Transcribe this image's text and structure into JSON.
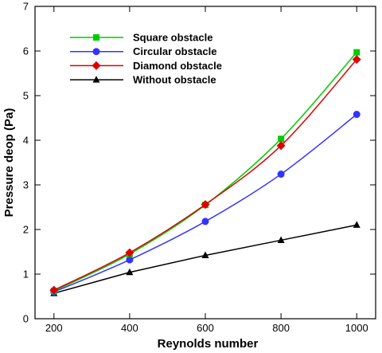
{
  "chart_data": {
    "type": "line",
    "xlabel": "Reynolds number",
    "ylabel": "Pressure deop (Pa)",
    "x": [
      200,
      400,
      600,
      800,
      1000
    ],
    "xlim": [
      150,
      1050
    ],
    "ylim": [
      0,
      7
    ],
    "xticks": [
      "200",
      "400",
      "600",
      "800",
      "1000"
    ],
    "yticks": [
      "0",
      "1",
      "2",
      "3",
      "4",
      "5",
      "6",
      "7"
    ],
    "legend_position": "top-left",
    "grid": false,
    "series": [
      {
        "name": "Square obstacle",
        "values": [
          0.62,
          1.45,
          2.55,
          4.03,
          5.97
        ],
        "color": "#00cc00",
        "marker": "square"
      },
      {
        "name": "Circular obstacle",
        "values": [
          0.6,
          1.32,
          2.18,
          3.24,
          4.58
        ],
        "color": "#3333ff",
        "marker": "circle"
      },
      {
        "name": "Diamond obstacle",
        "values": [
          0.64,
          1.48,
          2.56,
          3.88,
          5.81
        ],
        "color": "#dd0000",
        "marker": "diamond"
      },
      {
        "name": "Without obstacle",
        "values": [
          0.57,
          1.04,
          1.42,
          1.76,
          2.1
        ],
        "color": "#000000",
        "marker": "triangle"
      }
    ]
  }
}
